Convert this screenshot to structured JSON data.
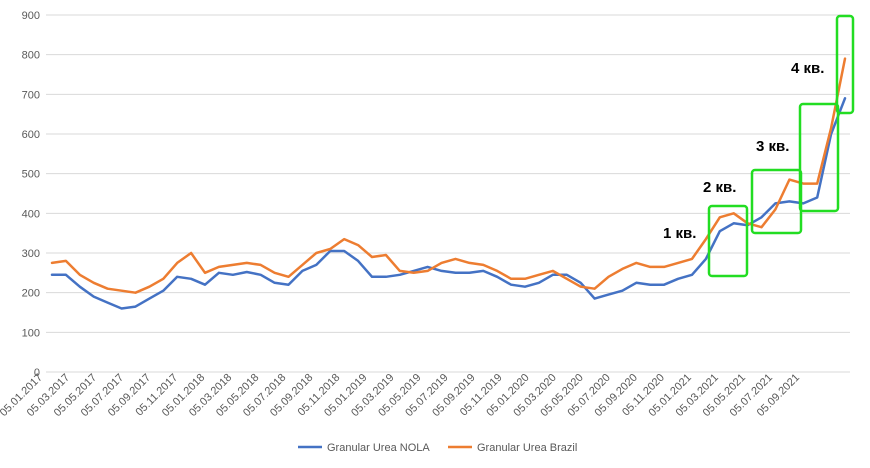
{
  "chart_data": {
    "type": "line",
    "title": "",
    "xlabel": "",
    "ylabel": "",
    "ylim": [
      0,
      900
    ],
    "yticks": [
      "0",
      "100",
      "200",
      "300",
      "400",
      "500",
      "600",
      "700",
      "800",
      "900"
    ],
    "grid": true,
    "legend_position": "bottom",
    "x_tick_labels": [
      "05.01.2017",
      "05.03.2017",
      "05.05.2017",
      "05.07.2017",
      "05.09.2017",
      "05.11.2017",
      "05.01.2018",
      "05.03.2018",
      "05.05.2018",
      "05.07.2018",
      "05.09.2018",
      "05.11.2018",
      "05.01.2019",
      "05.03.2019",
      "05.05.2019",
      "05.07.2019",
      "05.09.2019",
      "05.11.2019",
      "05.01.2020",
      "05.03.2020",
      "05.05.2020",
      "05.07.2020",
      "05.09.2020",
      "05.11.2020",
      "05.01.2021",
      "05.03.2021",
      "05.05.2021",
      "05.07.2021",
      "05.09.2021"
    ],
    "x": [
      "2017-01",
      "2017-02",
      "2017-03",
      "2017-04",
      "2017-05",
      "2017-06",
      "2017-07",
      "2017-08",
      "2017-09",
      "2017-10",
      "2017-11",
      "2017-12",
      "2018-01",
      "2018-02",
      "2018-03",
      "2018-04",
      "2018-05",
      "2018-06",
      "2018-07",
      "2018-08",
      "2018-09",
      "2018-10",
      "2018-11",
      "2018-12",
      "2019-01",
      "2019-02",
      "2019-03",
      "2019-04",
      "2019-05",
      "2019-06",
      "2019-07",
      "2019-08",
      "2019-09",
      "2019-10",
      "2019-11",
      "2019-12",
      "2020-01",
      "2020-02",
      "2020-03",
      "2020-04",
      "2020-05",
      "2020-06",
      "2020-07",
      "2020-08",
      "2020-09",
      "2020-10",
      "2020-11",
      "2020-12",
      "2021-01",
      "2021-02",
      "2021-03",
      "2021-04",
      "2021-05",
      "2021-06",
      "2021-07",
      "2021-08",
      "2021-09",
      "2021-10"
    ],
    "series": [
      {
        "name": "Granular Urea NOLA",
        "color": "#4472c4",
        "values": [
          245,
          245,
          215,
          190,
          175,
          160,
          165,
          185,
          205,
          240,
          235,
          220,
          250,
          245,
          252,
          245,
          225,
          220,
          255,
          270,
          305,
          305,
          280,
          240,
          240,
          245,
          255,
          265,
          255,
          250,
          250,
          255,
          240,
          220,
          215,
          225,
          245,
          245,
          225,
          185,
          195,
          205,
          225,
          220,
          220,
          235,
          245,
          285,
          355,
          375,
          370,
          390,
          425,
          430,
          425,
          440,
          600,
          690
        ],
        "color_name": "blue"
      },
      {
        "name": "Granular Urea Brazil",
        "color": "#ed7d31",
        "values": [
          275,
          280,
          245,
          225,
          210,
          205,
          200,
          215,
          235,
          275,
          300,
          250,
          265,
          270,
          275,
          270,
          250,
          240,
          270,
          300,
          310,
          335,
          320,
          290,
          295,
          255,
          250,
          255,
          275,
          285,
          275,
          270,
          255,
          235,
          235,
          245,
          255,
          235,
          215,
          210,
          240,
          260,
          275,
          265,
          265,
          275,
          285,
          335,
          390,
          400,
          375,
          365,
          410,
          485,
          475,
          475,
          615,
          790
        ],
        "color_name": "orange"
      }
    ],
    "annotations": [
      "1 кв.",
      "2 кв.",
      "3 кв.",
      "4 кв."
    ]
  }
}
